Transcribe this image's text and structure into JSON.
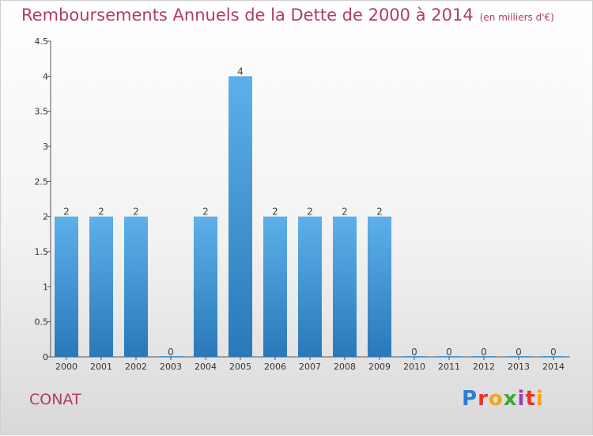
{
  "title": "Remboursements Annuels de la Dette de 2000 à 2014",
  "subtitle": "(en milliers d'€)",
  "commune": "CONAT",
  "logo": {
    "letters": [
      "P",
      "r",
      "o",
      "x",
      "i",
      "t",
      "i"
    ],
    "colors": [
      "#2a7fd6",
      "#e8342b",
      "#f0a51f",
      "#3aa82f",
      "#9b3fb5",
      "#e8342b",
      "#f0a51f"
    ]
  },
  "colors": {
    "bar_top": "#5db0ea",
    "bar_bottom": "#2a78b8",
    "axis": "#555555",
    "title": "#b03a6b"
  },
  "chart_data": {
    "type": "bar",
    "categories": [
      "2000",
      "2001",
      "2002",
      "2003",
      "2004",
      "2005",
      "2006",
      "2007",
      "2008",
      "2009",
      "2010",
      "2011",
      "2012",
      "2013",
      "2014"
    ],
    "values": [
      2,
      2,
      2,
      0,
      2,
      4,
      2,
      2,
      2,
      2,
      0,
      0,
      0,
      0,
      0
    ],
    "data_labels": [
      "2",
      "2",
      "2",
      "0",
      "2",
      "4",
      "2",
      "2",
      "2",
      "2",
      "0",
      "0",
      "0",
      "0",
      "0"
    ],
    "yticks": [
      "0",
      "0.5",
      "1",
      "1.5",
      "2",
      "2.5",
      "3",
      "3.5",
      "4",
      "4.5"
    ],
    "ylim": [
      0,
      4.5
    ],
    "grid": false
  }
}
